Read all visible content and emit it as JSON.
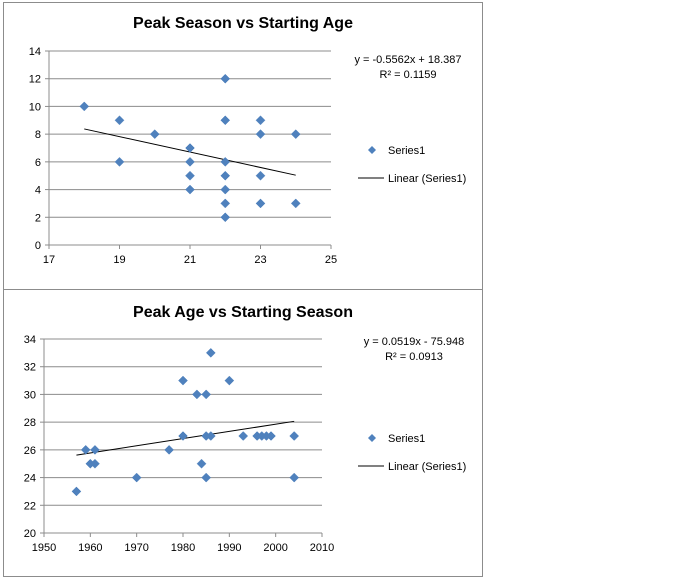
{
  "colors": {
    "marker": "#4f81bd",
    "trendline": "#000000",
    "grid": "#8c8c8c",
    "axis": "#8c8c8c"
  },
  "chart_data": [
    {
      "type": "scatter",
      "title": "Peak Season vs Starting Age",
      "xlim": [
        17,
        25
      ],
      "ylim": [
        0,
        14
      ],
      "x_ticks": [
        17,
        19,
        21,
        23,
        25
      ],
      "y_ticks": [
        0,
        2,
        4,
        6,
        8,
        10,
        12,
        14
      ],
      "grid": "horizontal",
      "legend_position": "right",
      "series": [
        {
          "name": "Series1",
          "points": [
            [
              18,
              10
            ],
            [
              19,
              9
            ],
            [
              19,
              6
            ],
            [
              20,
              8
            ],
            [
              21,
              7
            ],
            [
              21,
              6
            ],
            [
              21,
              5
            ],
            [
              21,
              4
            ],
            [
              22,
              12
            ],
            [
              22,
              9
            ],
            [
              22,
              6
            ],
            [
              22,
              5
            ],
            [
              22,
              4
            ],
            [
              22,
              3
            ],
            [
              22,
              2
            ],
            [
              23,
              9
            ],
            [
              23,
              8
            ],
            [
              23,
              5
            ],
            [
              23,
              3
            ],
            [
              24,
              8
            ],
            [
              24,
              3
            ]
          ]
        }
      ],
      "trendline": {
        "name": "Linear (Series1)",
        "slope": -0.5562,
        "intercept": 18.387,
        "x_range": [
          18,
          24
        ]
      },
      "equation": "y = -0.5562x + 18.387",
      "r_squared": "R² = 0.1159"
    },
    {
      "type": "scatter",
      "title": "Peak Age vs Starting Season",
      "xlim": [
        1950,
        2010
      ],
      "ylim": [
        20,
        34
      ],
      "x_ticks": [
        1950,
        1960,
        1970,
        1980,
        1990,
        2000,
        2010
      ],
      "y_ticks": [
        20,
        22,
        24,
        26,
        28,
        30,
        32,
        34
      ],
      "grid": "horizontal",
      "legend_position": "right",
      "series": [
        {
          "name": "Series1",
          "points": [
            [
              1957,
              23
            ],
            [
              1959,
              26
            ],
            [
              1960,
              25
            ],
            [
              1961,
              25
            ],
            [
              1961,
              26
            ],
            [
              1970,
              24
            ],
            [
              1977,
              26
            ],
            [
              1980,
              31
            ],
            [
              1980,
              27
            ],
            [
              1983,
              30
            ],
            [
              1984,
              25
            ],
            [
              1985,
              30
            ],
            [
              1985,
              27
            ],
            [
              1985,
              24
            ],
            [
              1986,
              33
            ],
            [
              1986,
              27
            ],
            [
              1990,
              31
            ],
            [
              1993,
              27
            ],
            [
              1996,
              27
            ],
            [
              1997,
              27
            ],
            [
              1998,
              27
            ],
            [
              1999,
              27
            ],
            [
              2004,
              27
            ],
            [
              2004,
              24
            ]
          ]
        }
      ],
      "trendline": {
        "name": "Linear (Series1)",
        "slope": 0.0519,
        "intercept": -75.948,
        "x_range": [
          1957,
          2004
        ]
      },
      "equation": "y = 0.0519x - 75.948",
      "r_squared": "R² = 0.0913"
    }
  ]
}
